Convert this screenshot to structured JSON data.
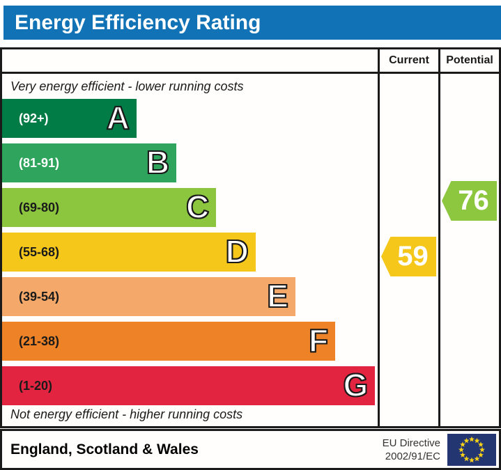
{
  "title": "Energy Efficiency Rating",
  "header": {
    "current_label": "Current",
    "potential_label": "Potential"
  },
  "notes": {
    "top": "Very energy efficient - lower running costs",
    "bottom": "Not energy efficient - higher running costs"
  },
  "chart_data": {
    "type": "bar",
    "title": "Energy Efficiency Rating",
    "columns": [
      "Current",
      "Potential"
    ],
    "bands": [
      {
        "letter": "A",
        "range_label": "(92+)",
        "range_min": 92,
        "range_max": 100,
        "color": "#027c46",
        "range_text_color": "#ffffff",
        "width_pct": 35.8
      },
      {
        "letter": "B",
        "range_label": "(81-91)",
        "range_min": 81,
        "range_max": 91,
        "color": "#2fa45c",
        "range_text_color": "#ffffff",
        "width_pct": 46.4
      },
      {
        "letter": "C",
        "range_label": "(69-80)",
        "range_min": 69,
        "range_max": 80,
        "color": "#8cc63f",
        "range_text_color": "#1a1a1a",
        "width_pct": 57.0
      },
      {
        "letter": "D",
        "range_label": "(55-68)",
        "range_min": 55,
        "range_max": 68,
        "color": "#f5c71b",
        "range_text_color": "#1a1a1a",
        "width_pct": 67.5
      },
      {
        "letter": "E",
        "range_label": "(39-54)",
        "range_min": 39,
        "range_max": 54,
        "color": "#f4a96a",
        "range_text_color": "#1a1a1a",
        "width_pct": 78.1
      },
      {
        "letter": "F",
        "range_label": "(21-38)",
        "range_min": 21,
        "range_max": 38,
        "color": "#ee8227",
        "range_text_color": "#1a1a1a",
        "width_pct": 88.7
      },
      {
        "letter": "G",
        "range_label": "(1-20)",
        "range_min": 1,
        "range_max": 20,
        "color": "#e32440",
        "range_text_color": "#1a1a1a",
        "width_pct": 99.3
      }
    ],
    "current": {
      "value": 59,
      "band": "D",
      "color": "#f5c71b"
    },
    "potential": {
      "value": 76,
      "band": "C",
      "color": "#8dc63f"
    }
  },
  "footer": {
    "region": "England, Scotland & Wales",
    "directive_line1": "EU Directive",
    "directive_line2": "2002/91/EC",
    "flag": {
      "background": "#243671",
      "star_color": "#f7d117",
      "stars": 12
    }
  },
  "style": {
    "title_bar_color": "#1173b5",
    "border_color": "#1a1a1a"
  }
}
